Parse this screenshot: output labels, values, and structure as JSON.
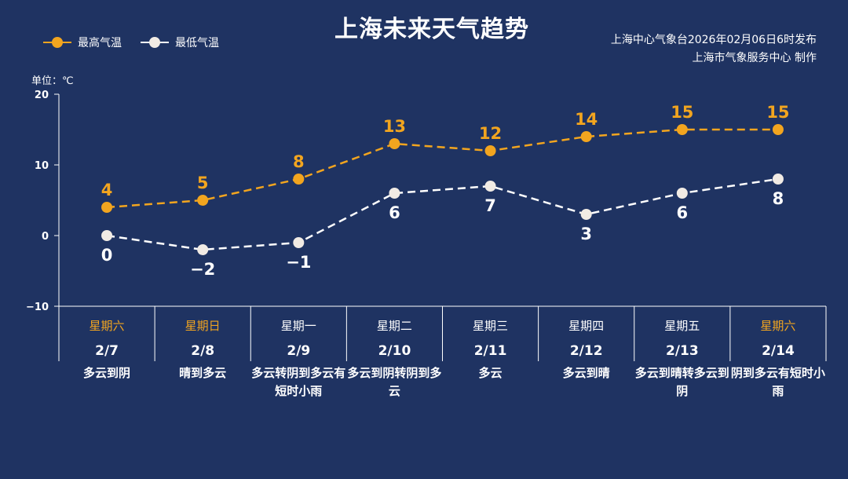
{
  "title": "上海未来天气趋势",
  "source": {
    "line1": "上海中心气象台2026年02月06日6时发布",
    "line2": "上海市气象服务中心 制作"
  },
  "legend": {
    "high_label": "最高气温",
    "low_label": "最低气温"
  },
  "unit_label": "单位：℃",
  "colors": {
    "background": "#1f3362",
    "high": "#f2a51f",
    "low": "#ffffff",
    "low_fill": "#f1ebe4",
    "weekend": "#f2a51f",
    "weekday": "#ffffff"
  },
  "chart_data": {
    "type": "line",
    "ylim": [
      -10,
      20
    ],
    "yticks": [
      -10,
      0,
      10,
      20
    ],
    "categories": [
      "2/7",
      "2/8",
      "2/9",
      "2/10",
      "2/11",
      "2/12",
      "2/13",
      "2/14"
    ],
    "series": [
      {
        "name": "最高气温",
        "values": [
          4,
          5,
          8,
          13,
          12,
          14,
          15,
          15
        ]
      },
      {
        "name": "最低气温",
        "values": [
          0,
          -2,
          -1,
          6,
          7,
          3,
          6,
          8
        ]
      }
    ],
    "days": [
      {
        "weekday": "星期六",
        "date": "2/7",
        "weather": "多云到阴",
        "weekend": true
      },
      {
        "weekday": "星期日",
        "date": "2/8",
        "weather": "晴到多云",
        "weekend": true
      },
      {
        "weekday": "星期一",
        "date": "2/9",
        "weather": "多云转阴到多云有短时小雨",
        "weekend": false
      },
      {
        "weekday": "星期二",
        "date": "2/10",
        "weather": "多云到阴转阴到多云",
        "weekend": false
      },
      {
        "weekday": "星期三",
        "date": "2/11",
        "weather": "多云",
        "weekend": false
      },
      {
        "weekday": "星期四",
        "date": "2/12",
        "weather": "多云到晴",
        "weekend": false
      },
      {
        "weekday": "星期五",
        "date": "2/13",
        "weather": "多云到晴转多云到阴",
        "weekend": false
      },
      {
        "weekday": "星期六",
        "date": "2/14",
        "weather": "阴到多云有短时小雨",
        "weekend": true
      }
    ]
  }
}
